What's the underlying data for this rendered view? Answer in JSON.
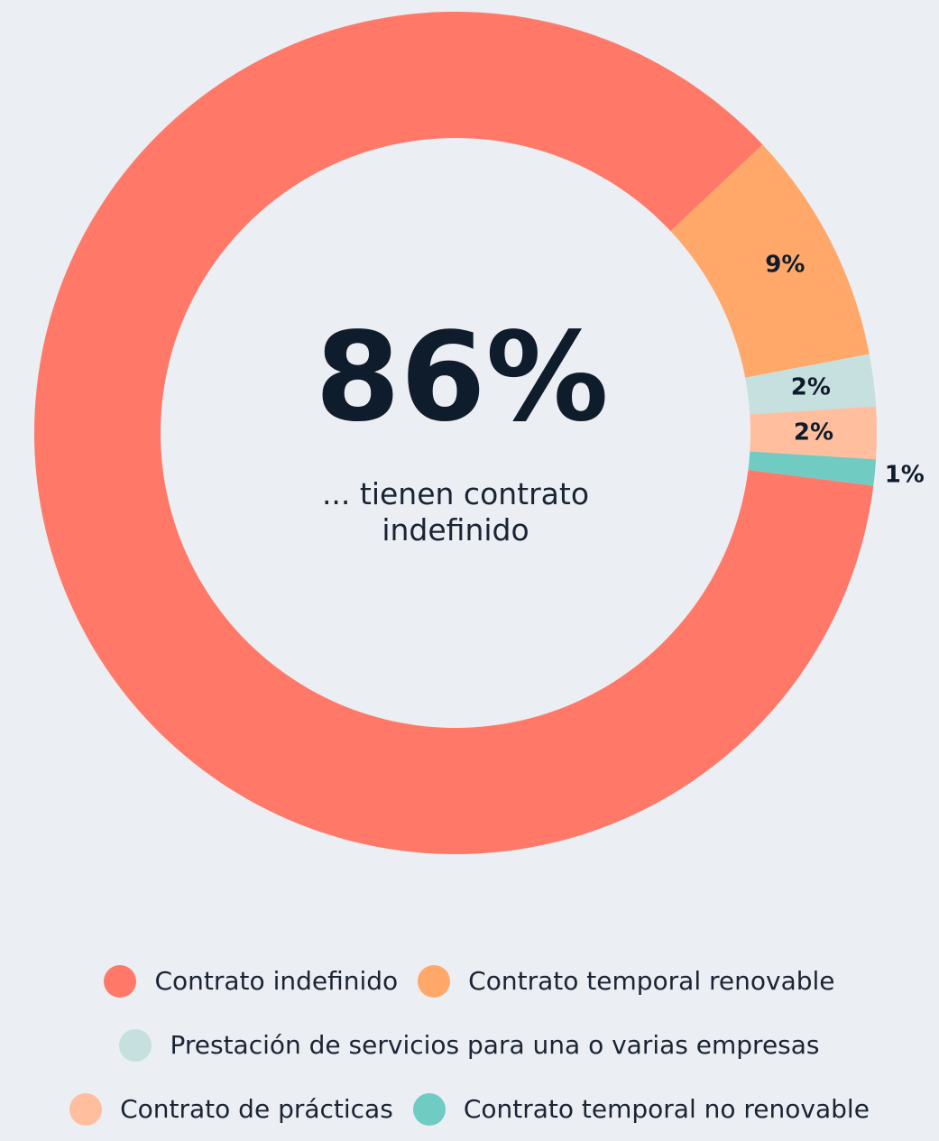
{
  "chart_data": {
    "type": "donut",
    "categories": [
      "Contrato indefinido",
      "Contrato temporal renovable",
      "Prestación de servicios para una o varias empresas",
      "Contrato de prácticas",
      "Contrato temporal no renovable"
    ],
    "values": [
      86,
      9,
      2,
      2,
      1
    ],
    "value_labels": [
      "86%",
      "9%",
      "2%",
      "2%",
      "1%"
    ],
    "colors": [
      "#ff7868",
      "#ffa86a",
      "#c6dfdf",
      "#ffbe9d",
      "#70cbc3"
    ],
    "center_text": "... tienen contrato indefinido"
  }
}
